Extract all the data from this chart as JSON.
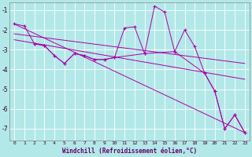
{
  "xlabel": "Windchill (Refroidissement éolien,°C)",
  "background_color": "#b3e8e8",
  "line_color": "#aa00aa",
  "grid_color": "#ffffff",
  "xlim": [
    -0.5,
    23.5
  ],
  "ylim": [
    -7.6,
    -0.6
  ],
  "yticks": [
    -7,
    -6,
    -5,
    -4,
    -3,
    -2,
    -1
  ],
  "xticks": [
    0,
    1,
    2,
    3,
    4,
    5,
    6,
    7,
    8,
    9,
    10,
    11,
    12,
    13,
    14,
    15,
    16,
    17,
    18,
    19,
    20,
    21,
    22,
    23
  ],
  "line1_x": [
    0,
    1,
    2,
    3,
    4,
    5,
    6,
    7,
    8,
    9,
    10,
    11,
    12,
    13,
    14,
    15,
    16,
    17,
    18,
    19,
    20,
    21,
    22,
    23
  ],
  "line1_y": [
    -1.7,
    -1.8,
    -2.7,
    -2.8,
    -3.3,
    -3.7,
    -3.2,
    -3.3,
    -3.5,
    -3.5,
    -3.4,
    -1.9,
    -1.85,
    -3.2,
    -0.8,
    -1.1,
    -3.1,
    -2.0,
    -2.85,
    -4.2,
    -5.1,
    -7.0,
    -6.3,
    -7.2
  ],
  "line2_x": [
    2,
    3,
    4,
    5,
    6,
    7,
    8,
    9,
    10,
    13,
    16,
    19,
    20,
    21,
    22,
    23
  ],
  "line2_y": [
    -2.7,
    -2.8,
    -3.3,
    -3.7,
    -3.2,
    -3.3,
    -3.5,
    -3.5,
    -3.4,
    -3.2,
    -3.1,
    -4.2,
    -5.1,
    -7.0,
    -6.3,
    -7.2
  ],
  "trend1_x": [
    0,
    23
  ],
  "trend1_y": [
    -1.7,
    -7.2
  ],
  "trend2_x": [
    0,
    23
  ],
  "trend2_y": [
    -2.5,
    -4.5
  ],
  "trend3_x": [
    0,
    23
  ],
  "trend3_y": [
    -2.2,
    -3.7
  ],
  "xlabel_color": "#660066",
  "tick_color": "#330033",
  "spine_color": "#888888"
}
